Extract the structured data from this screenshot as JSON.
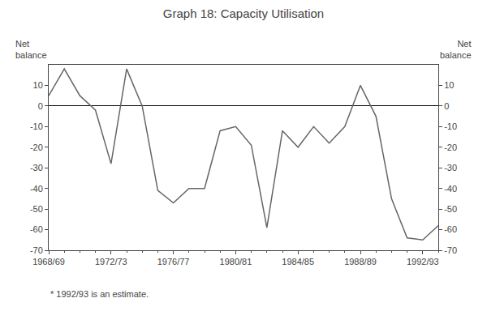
{
  "chart_data": {
    "type": "line",
    "title": "Graph 18: Capacity Utilisation",
    "ylabel": "Net\nbalance",
    "y2label": "Net\nbalance",
    "annotations": [
      "* 1992/93 is an estimate."
    ],
    "x": [
      1968,
      1969,
      1970,
      1971,
      1972,
      1973,
      1974,
      1975,
      1976,
      1977,
      1978,
      1979,
      1980,
      1981,
      1982,
      1983,
      1984,
      1985,
      1986,
      1987,
      1988,
      1989,
      1990,
      1991,
      1992,
      1993
    ],
    "values": [
      5,
      18,
      5,
      -2,
      -28,
      18,
      0,
      -41,
      -47,
      -40,
      -40,
      -12,
      -10,
      -19,
      -59,
      -12,
      -20,
      -10,
      -18,
      -10,
      10,
      -5,
      -45,
      -64,
      -65,
      -58
    ],
    "color": "#666666",
    "xlim": [
      1968,
      1993
    ],
    "xticks": [
      {
        "value": 1968,
        "label": "1968/69"
      },
      {
        "value": 1972,
        "label": "1972/73"
      },
      {
        "value": 1976,
        "label": "1976/77"
      },
      {
        "value": 1980,
        "label": "1980/81"
      },
      {
        "value": 1984,
        "label": "1984/85"
      },
      {
        "value": 1988,
        "label": "1988/89"
      },
      {
        "value": 1992,
        "label": "1992/93"
      }
    ],
    "ylim": [
      -70,
      20
    ],
    "yticks": [
      -70,
      -60,
      -50,
      -40,
      -30,
      -20,
      -10,
      0,
      10
    ],
    "y2lim": [
      -70,
      20
    ],
    "y2ticks": [
      -70,
      -60,
      -50,
      -40,
      -30,
      -20,
      -10,
      0,
      10
    ],
    "grid": false
  }
}
